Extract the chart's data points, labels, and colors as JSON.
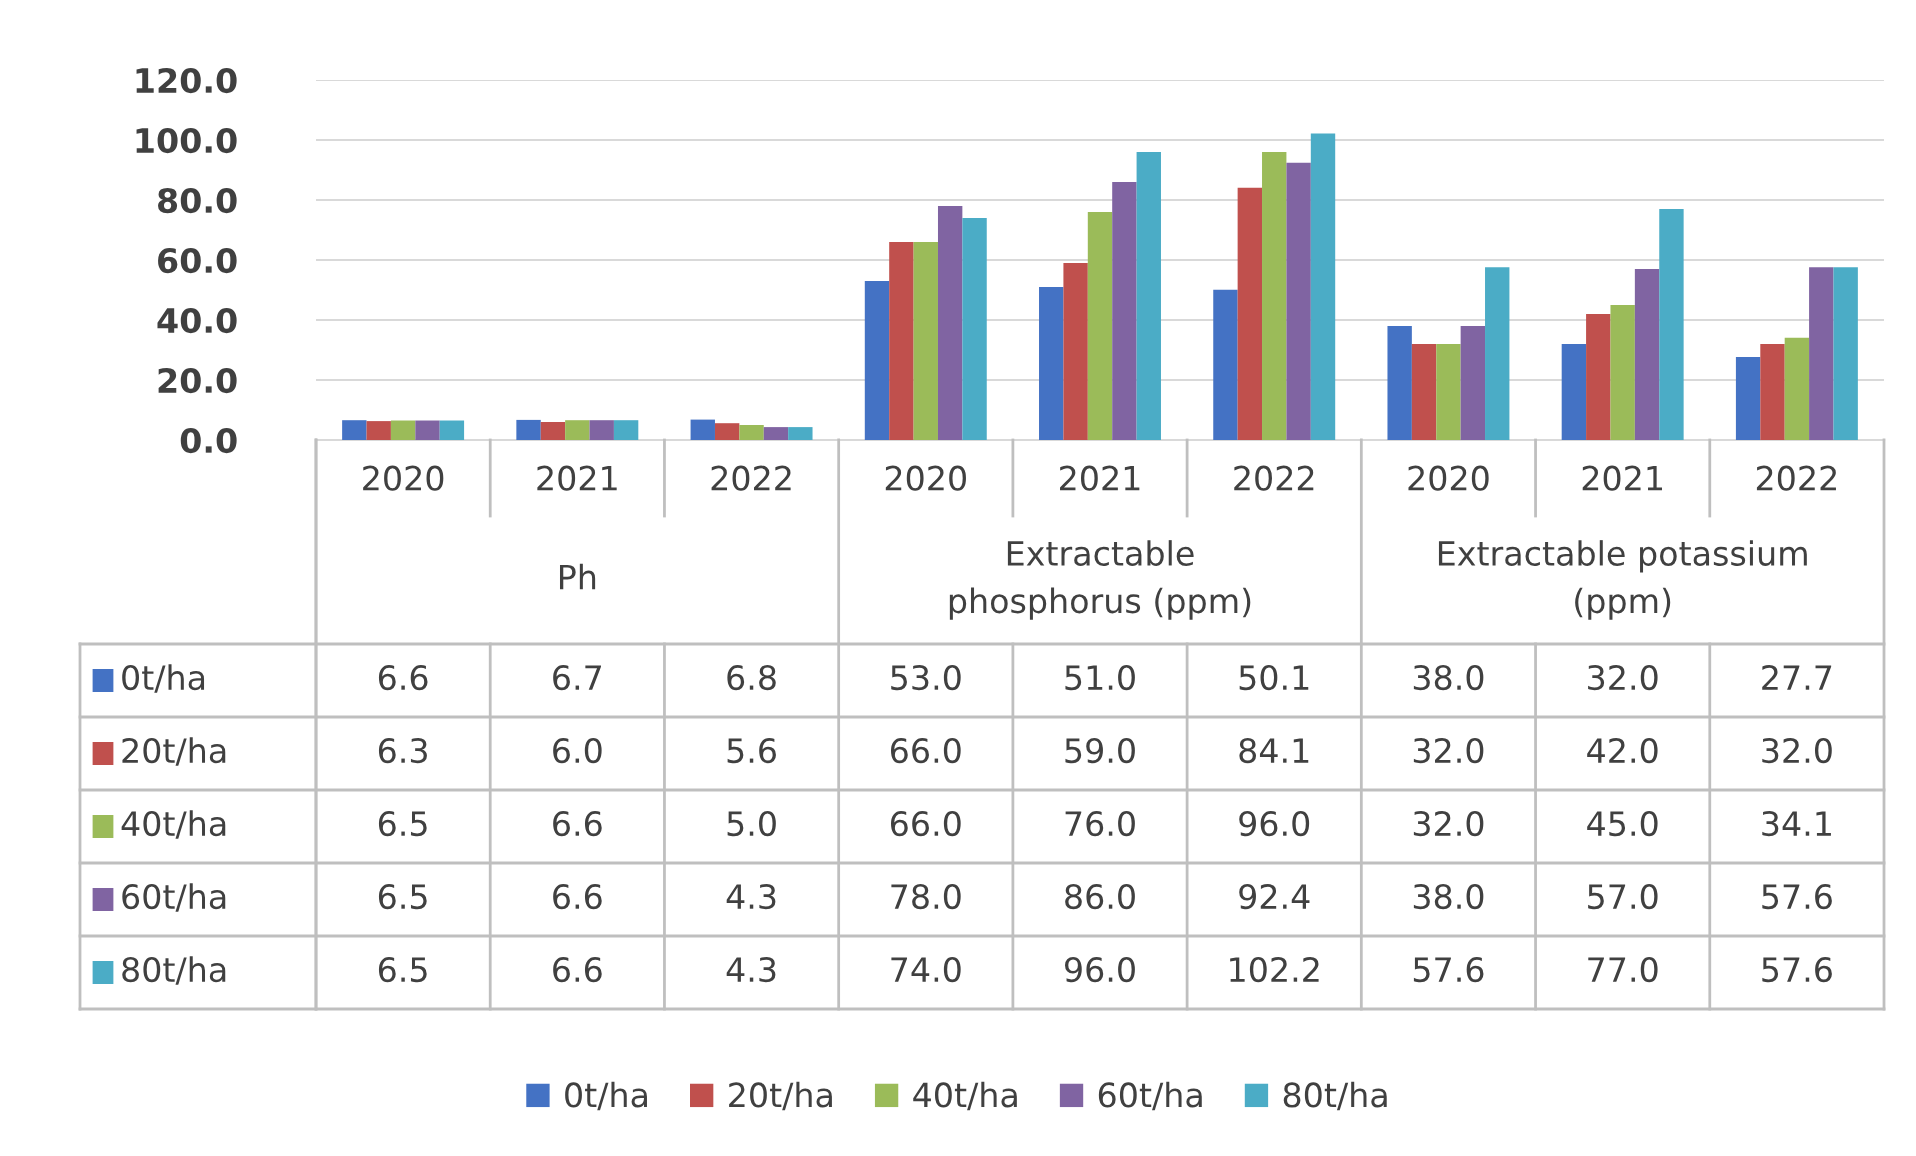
{
  "chart_data": {
    "type": "bar",
    "categories": [
      "2020",
      "2021",
      "2022",
      "2020",
      "2021",
      "2022",
      "2020",
      "2021",
      "2022"
    ],
    "annotations": [
      "Ph",
      "Extractable\nphosphorus (ppm)",
      "Extractable potassium\n(ppm)"
    ],
    "series": [
      {
        "name": "0t/ha",
        "color": "#4472c4",
        "values": [
          6.6,
          6.7,
          6.8,
          53.0,
          51.0,
          50.1,
          38.0,
          32.0,
          27.7
        ],
        "value_labels": [
          "6.6",
          "6.7",
          "6.8",
          "53.0",
          "51.0",
          "50.1",
          "38.0",
          "32.0",
          "27.7"
        ]
      },
      {
        "name": "20t/ha",
        "color": "#c0504d",
        "values": [
          6.3,
          6.0,
          5.6,
          66.0,
          59.0,
          84.1,
          32.0,
          42.0,
          32.0
        ],
        "value_labels": [
          "6.3",
          "6.0",
          "5.6",
          "66.0",
          "59.0",
          "84.1",
          "32.0",
          "42.0",
          "32.0"
        ]
      },
      {
        "name": "40t/ha",
        "color": "#9bbb59",
        "values": [
          6.5,
          6.6,
          5.0,
          66.0,
          76.0,
          96.0,
          32.0,
          45.0,
          34.1
        ],
        "value_labels": [
          "6.5",
          "6.6",
          "5.0",
          "66.0",
          "76.0",
          "96.0",
          "32.0",
          "45.0",
          "34.1"
        ]
      },
      {
        "name": "60t/ha",
        "color": "#8064a2",
        "values": [
          6.5,
          6.6,
          4.3,
          78.0,
          86.0,
          92.4,
          38.0,
          57.0,
          57.6
        ],
        "value_labels": [
          "6.5",
          "6.6",
          "4.3",
          "78.0",
          "86.0",
          "92.4",
          "38.0",
          "57.0",
          "57.6"
        ]
      },
      {
        "name": "80t/ha",
        "color": "#4bacc6",
        "values": [
          6.5,
          6.6,
          4.3,
          74.0,
          96.0,
          102.2,
          57.6,
          77.0,
          57.6
        ],
        "value_labels": [
          "6.5",
          "6.6",
          "4.3",
          "74.0",
          "96.0",
          "102.2",
          "57.6",
          "77.0",
          "57.6"
        ]
      }
    ],
    "ylim": [
      0,
      120
    ],
    "yticks": [
      {
        "value": 0,
        "label": "0.0"
      },
      {
        "value": 20,
        "label": "20.0"
      },
      {
        "value": 40,
        "label": "40.0"
      },
      {
        "value": 60,
        "label": "60.0"
      },
      {
        "value": 80,
        "label": "80.0"
      },
      {
        "value": 100,
        "label": "100.0"
      },
      {
        "value": 120,
        "label": "120.0"
      }
    ],
    "grid": "y",
    "legend": "bottom"
  }
}
